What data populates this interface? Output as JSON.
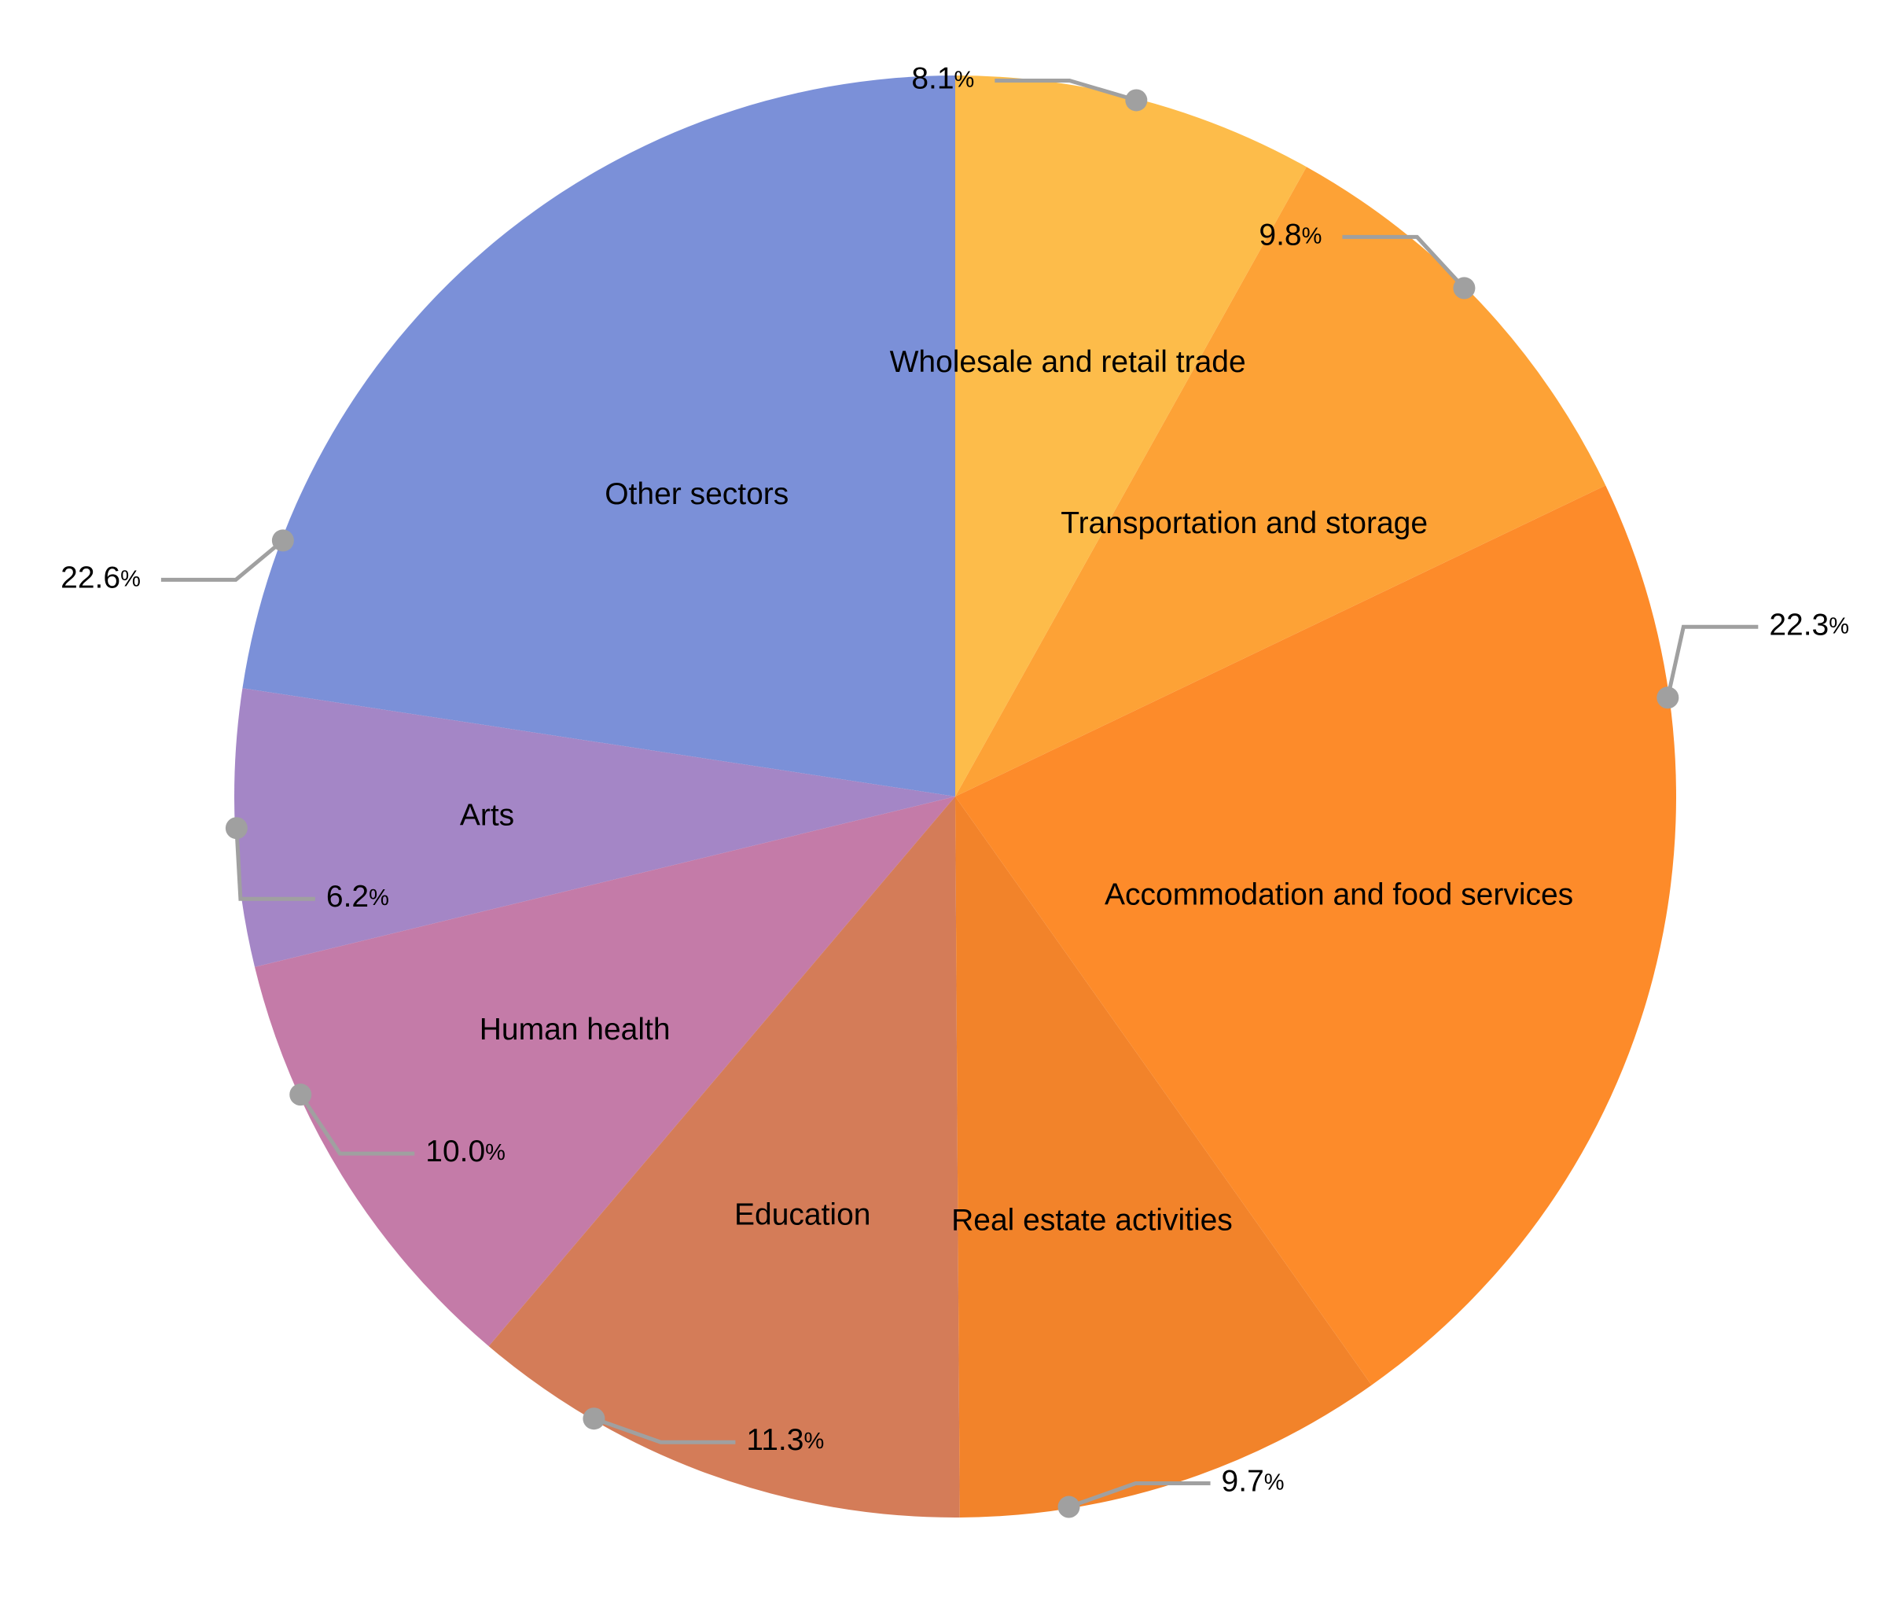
{
  "chart_data": {
    "type": "pie",
    "title": "",
    "value_suffix": "%",
    "start_angle_deg": 270,
    "direction": "counterclockwise",
    "slices": [
      {
        "name": "Other sectors",
        "value": 22.6,
        "display": "22.6",
        "color": "#7b90d8"
      },
      {
        "name": "Arts",
        "value": 6.2,
        "display": "6.2",
        "color": "#a486c6"
      },
      {
        "name": "Human health",
        "value": 10.0,
        "display": "10.0",
        "color": "#c47ba8"
      },
      {
        "name": "Education",
        "value": 11.3,
        "display": "11.3",
        "color": "#d47c58"
      },
      {
        "name": "Real estate activities",
        "value": 9.7,
        "display": "9.7",
        "color": "#f2832a"
      },
      {
        "name": "Accommodation and food services",
        "value": 22.3,
        "display": "22.3",
        "color": "#fd8b2a"
      },
      {
        "name": "Transportation and storage",
        "value": 9.8,
        "display": "9.8",
        "color": "#fda236"
      },
      {
        "name": "Wholesale and retail trade",
        "value": 8.1,
        "display": "8.1",
        "color": "#fdbc4a"
      }
    ]
  }
}
